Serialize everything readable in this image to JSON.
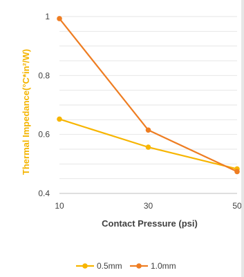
{
  "chart_data": {
    "type": "line",
    "x": [
      10,
      30,
      50
    ],
    "xticks": [
      "10",
      "30",
      "50"
    ],
    "yticks": [
      "0.4",
      "0.6",
      "0.8",
      "1"
    ],
    "xlim": [
      10,
      50
    ],
    "ylim": [
      0.4,
      1.0
    ],
    "xlabel": "Contact Pressure (psi)",
    "ylabel": "Thermal Impedance(°C*in²/W)",
    "ylabel_color": "#F4B400",
    "grid": "horizontal",
    "legend_position": "bottom",
    "series": [
      {
        "name": "0.5mm",
        "color": "#F7B500",
        "values": [
          0.652,
          0.557,
          0.483
        ]
      },
      {
        "name": "1.0mm",
        "color": "#EE7D22",
        "values": [
          0.993,
          0.615,
          0.474
        ]
      }
    ]
  }
}
